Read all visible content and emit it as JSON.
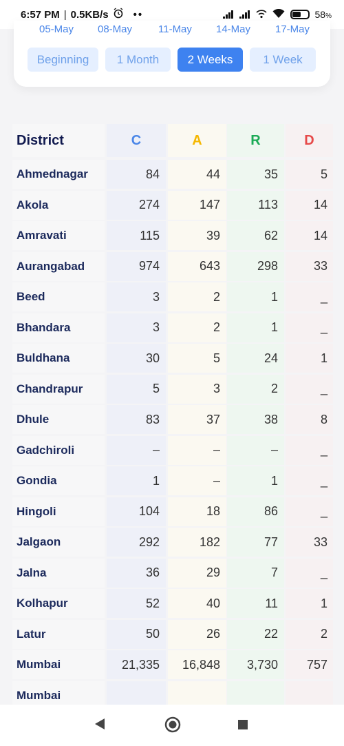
{
  "status": {
    "time": "6:57 PM",
    "speed": "0.5KB/s",
    "battery": "58"
  },
  "dates": [
    "05-May",
    "08-May",
    "11-May",
    "14-May",
    "17-May"
  ],
  "ranges": [
    {
      "label": "Beginning",
      "active": false
    },
    {
      "label": "1 Month",
      "active": false
    },
    {
      "label": "2 Weeks",
      "active": true
    },
    {
      "label": "1 Week",
      "active": false
    }
  ],
  "table": {
    "headers": {
      "district": "District",
      "c": "C",
      "a": "A",
      "r": "R",
      "d": "D"
    },
    "colors": {
      "c": "#4a86e8",
      "a": "#f5b700",
      "r": "#1aaa55",
      "d": "#e64a4a"
    },
    "rows": [
      {
        "district": "Ahmednagar",
        "c": "84",
        "a": "44",
        "r": "35",
        "d": "5"
      },
      {
        "district": "Akola",
        "c": "274",
        "a": "147",
        "r": "113",
        "d": "14"
      },
      {
        "district": "Amravati",
        "c": "115",
        "a": "39",
        "r": "62",
        "d": "14"
      },
      {
        "district": "Aurangabad",
        "c": "974",
        "a": "643",
        "r": "298",
        "d": "33"
      },
      {
        "district": "Beed",
        "c": "3",
        "a": "2",
        "r": "1",
        "d": "_"
      },
      {
        "district": "Bhandara",
        "c": "3",
        "a": "2",
        "r": "1",
        "d": "_"
      },
      {
        "district": "Buldhana",
        "c": "30",
        "a": "5",
        "r": "24",
        "d": "1"
      },
      {
        "district": "Chandrapur",
        "c": "5",
        "a": "3",
        "r": "2",
        "d": "_"
      },
      {
        "district": "Dhule",
        "c": "83",
        "a": "37",
        "r": "38",
        "d": "8"
      },
      {
        "district": "Gadchiroli",
        "c": "–",
        "a": "–",
        "r": "–",
        "d": "_"
      },
      {
        "district": "Gondia",
        "c": "1",
        "a": "–",
        "r": "1",
        "d": "_"
      },
      {
        "district": "Hingoli",
        "c": "104",
        "a": "18",
        "r": "86",
        "d": "_"
      },
      {
        "district": "Jalgaon",
        "c": "292",
        "a": "182",
        "r": "77",
        "d": "33"
      },
      {
        "district": "Jalna",
        "c": "36",
        "a": "29",
        "r": "7",
        "d": "_"
      },
      {
        "district": "Kolhapur",
        "c": "52",
        "a": "40",
        "r": "11",
        "d": "1"
      },
      {
        "district": "Latur",
        "c": "50",
        "a": "26",
        "r": "22",
        "d": "2"
      },
      {
        "district": "Mumbai",
        "c": "21,335",
        "a": "16,848",
        "r": "3,730",
        "d": "757"
      },
      {
        "district": "Mumbai",
        "c": "",
        "a": "",
        "r": "",
        "d": ""
      }
    ]
  }
}
